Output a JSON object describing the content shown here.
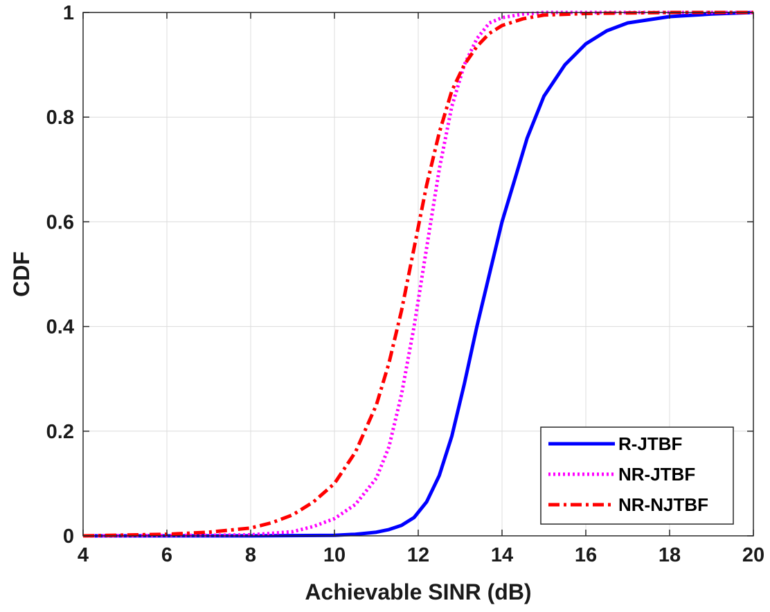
{
  "chart_data": {
    "type": "line",
    "xlabel": "Achievable SINR (dB)",
    "ylabel": "CDF",
    "xlim": [
      4,
      20
    ],
    "ylim": [
      0,
      1
    ],
    "x_ticks": [
      4,
      6,
      8,
      10,
      12,
      14,
      16,
      18,
      20
    ],
    "y_ticks": [
      0,
      0.2,
      0.4,
      0.6,
      0.8,
      1
    ],
    "x_tick_labels": [
      "4",
      "6",
      "8",
      "10",
      "12",
      "14",
      "16",
      "18",
      "20"
    ],
    "y_tick_labels": [
      "0",
      "0.2",
      "0.4",
      "0.6",
      "0.8",
      "1"
    ],
    "grid": true,
    "legend_position": "bottom-right",
    "series": [
      {
        "name": "R-JTBF",
        "color": "#0000ff",
        "style": "solid",
        "x": [
          4,
          8,
          10,
          10.5,
          11,
          11.3,
          11.6,
          11.9,
          12.2,
          12.5,
          12.8,
          13.1,
          13.4,
          13.7,
          14,
          14.3,
          14.6,
          15,
          15.5,
          16,
          16.5,
          17,
          18,
          19,
          20
        ],
        "y": [
          0,
          0,
          0.001,
          0.003,
          0.007,
          0.012,
          0.02,
          0.035,
          0.065,
          0.115,
          0.19,
          0.29,
          0.4,
          0.5,
          0.6,
          0.68,
          0.76,
          0.84,
          0.9,
          0.94,
          0.965,
          0.98,
          0.992,
          0.997,
          1
        ]
      },
      {
        "name": "NR-JTBF",
        "color": "#ff00ff",
        "style": "dotted",
        "x": [
          4,
          7,
          8,
          9,
          9.5,
          10,
          10.5,
          11,
          11.3,
          11.6,
          11.9,
          12.2,
          12.5,
          12.8,
          13.1,
          13.4,
          13.7,
          14,
          14.5,
          15,
          16,
          18,
          20
        ],
        "y": [
          0,
          0.001,
          0.002,
          0.008,
          0.018,
          0.033,
          0.06,
          0.11,
          0.17,
          0.27,
          0.4,
          0.55,
          0.7,
          0.82,
          0.9,
          0.95,
          0.98,
          0.99,
          0.997,
          1,
          1,
          1,
          1
        ]
      },
      {
        "name": "NR-NJTBF",
        "color": "#ff0000",
        "style": "dashdot",
        "x": [
          4,
          6,
          7,
          8,
          8.5,
          9,
          9.5,
          10,
          10.5,
          11,
          11.3,
          11.6,
          11.9,
          12.2,
          12.5,
          12.8,
          13.1,
          13.4,
          13.7,
          14,
          14.5,
          15,
          16,
          18,
          20
        ],
        "y": [
          0,
          0.003,
          0.007,
          0.015,
          0.025,
          0.04,
          0.065,
          0.1,
          0.16,
          0.25,
          0.33,
          0.43,
          0.55,
          0.67,
          0.77,
          0.85,
          0.9,
          0.935,
          0.96,
          0.975,
          0.988,
          0.995,
          0.998,
          1,
          1
        ]
      }
    ]
  }
}
